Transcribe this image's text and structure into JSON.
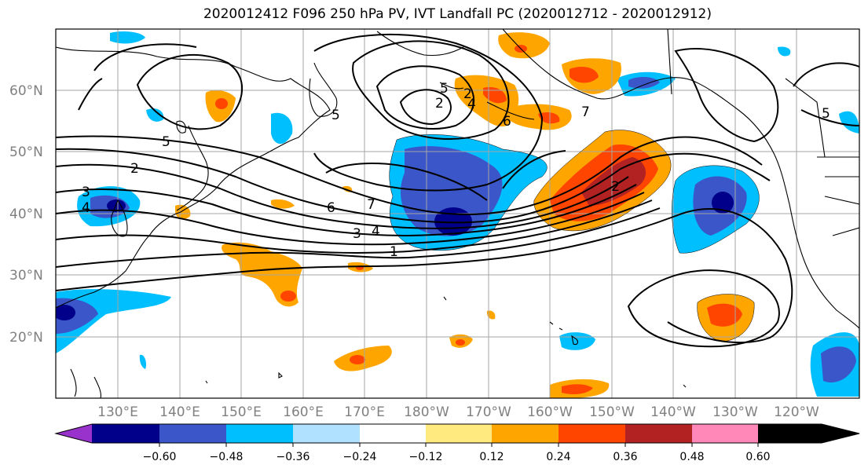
{
  "title": "2020012412 F096 250 hPa PV, IVT Landfall PC (2020012712 - 2020012912)",
  "lat_labels": [
    "60°N",
    "50°N",
    "40°N",
    "30°N",
    "20°N"
  ],
  "lon_labels": [
    "130°E",
    "140°E",
    "150°E",
    "160°E",
    "170°E",
    "180°W",
    "170°W",
    "160°W",
    "150°W",
    "140°W",
    "130°W",
    "120°W"
  ],
  "colorbar": {
    "tick_labels": [
      "−0.60",
      "−0.48",
      "−0.36",
      "−0.24",
      "−0.12",
      "0.12",
      "0.24",
      "0.36",
      "0.48",
      "0.60"
    ],
    "colors": [
      "#9932cc",
      "#00008b",
      "#3a56c9",
      "#00bfff",
      "#b0e2ff",
      "#ffffff",
      "#ffea80",
      "#ffa500",
      "#ff4500",
      "#b22222",
      "#ff88b8"
    ]
  },
  "contour_labels": [
    "5",
    "2",
    "3",
    "4",
    "5",
    "7",
    "6",
    "3",
    "4",
    "1",
    "2",
    "5",
    "2",
    "6",
    "2",
    "4",
    "5",
    "7"
  ]
}
